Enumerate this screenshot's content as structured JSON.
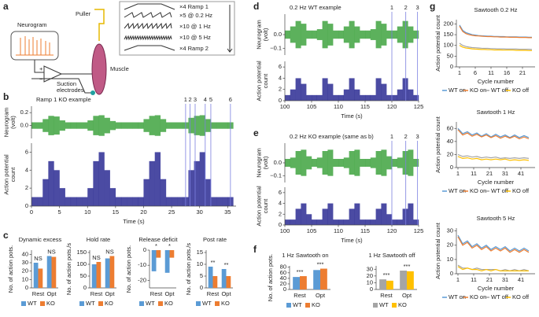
{
  "panel_labels": [
    "a",
    "b",
    "c",
    "d",
    "e",
    "f",
    "g"
  ],
  "diagram": {
    "neurogram": "Neurogram",
    "puller": "Puller",
    "muscle": "Muscle",
    "electrodes": [
      "Suction",
      "electrodes"
    ],
    "amp_signs": [
      "+",
      "−"
    ],
    "protocol": [
      "×4 Ramp 1",
      "×5 @ 0.2 Hz",
      "×10 @ 1 Hz",
      "×10 @ 5 Hz",
      "×4 Ramp 2"
    ]
  },
  "chart_data": [
    {
      "type": "trace",
      "title": "Ramp 1 KO example",
      "xlabel": "Time (s)",
      "xlim": [
        0,
        36.5
      ],
      "xticks": [
        0,
        5,
        10,
        15,
        20,
        25,
        30,
        35
      ],
      "x": [
        0,
        1,
        2,
        3,
        4,
        5,
        6,
        7,
        8,
        9,
        10,
        11,
        12,
        13,
        14,
        15,
        16,
        17,
        18,
        19,
        20,
        21,
        22,
        23,
        24,
        25,
        26,
        27,
        28,
        29,
        30,
        31,
        32,
        33,
        34,
        35
      ],
      "neurogram": {
        "ylabel": [
          "Neurogram",
          "(volt)"
        ],
        "ylim": [
          -0.2,
          0.3
        ],
        "yticks": [
          {
            "value": 0,
            "label": "0.0"
          },
          {
            "value": 0.2,
            "label": "0.2"
          }
        ],
        "amplitude": [
          0.05,
          0.05,
          0.1,
          0.15,
          0.14,
          0.08,
          0.05,
          0.05,
          0.05,
          0.05,
          0.08,
          0.15,
          0.16,
          0.12,
          0.07,
          0.05,
          0.05,
          0.05,
          0.05,
          0.05,
          0.1,
          0.15,
          0.16,
          0.1,
          0.05,
          0.05,
          0.05,
          0.05,
          0.12,
          0.15,
          0.16,
          0.1,
          0.05,
          0.05,
          0.05,
          0.05
        ]
      },
      "counts": {
        "ylabel": [
          "Action potential",
          "count"
        ],
        "ylim": [
          0,
          7
        ],
        "yticks": [
          0,
          2,
          4,
          6
        ],
        "values": [
          1,
          1,
          3,
          5,
          4,
          2,
          1,
          1,
          1,
          1,
          2,
          5,
          6,
          4,
          2,
          1,
          1,
          1,
          1,
          1,
          3,
          5,
          6,
          3,
          1,
          1,
          1,
          1,
          4,
          5,
          6,
          3,
          1,
          1,
          1,
          1
        ]
      },
      "markers": [
        27.5,
        28.3,
        29.2,
        31,
        32,
        35.5
      ],
      "marker_labels": [
        "1",
        "2",
        "3",
        "4",
        "5",
        "6"
      ]
    },
    {
      "type": "bar",
      "title": "Dynamic excess",
      "ylabel": "No. of action pots.",
      "categories": [
        "Rest",
        "Opt"
      ],
      "ylim": [
        0,
        45
      ],
      "yticks": [
        0,
        10,
        20,
        30,
        40
      ],
      "series": [
        {
          "name": "WT",
          "color": "#5b9bd5",
          "values": [
            30,
            38
          ]
        },
        {
          "name": "KO",
          "color": "#ed7d31",
          "values": [
            23,
            37
          ]
        }
      ],
      "significance": [
        "NS",
        "NS"
      ]
    },
    {
      "type": "bar",
      "title": "Hold rate",
      "ylabel": "No. of action pots./s",
      "categories": [
        "Rest",
        "Opt"
      ],
      "ylim": [
        0,
        160
      ],
      "yticks": [
        0,
        50,
        100,
        150
      ],
      "series": [
        {
          "name": "WT",
          "color": "#5b9bd5",
          "values": [
            100,
            125
          ]
        },
        {
          "name": "KO",
          "color": "#ed7d31",
          "values": [
            110,
            135
          ]
        }
      ],
      "significance": [
        "NS",
        "NS"
      ]
    },
    {
      "type": "bar",
      "title": "Release deficit",
      "ylabel": "No. of action pots.",
      "categories": [
        "Rest",
        "Opt"
      ],
      "ylim": [
        -25,
        0
      ],
      "yticks": [
        0,
        -10,
        -20
      ],
      "series": [
        {
          "name": "WT",
          "color": "#5b9bd5",
          "values": [
            -14,
            -15
          ]
        },
        {
          "name": "KO",
          "color": "#ed7d31",
          "values": [
            -5,
            -5
          ]
        }
      ],
      "significance": [
        "*",
        "*"
      ]
    },
    {
      "type": "bar",
      "title": "Post rate",
      "ylabel": "No. of action pots./s",
      "categories": [
        "Rest",
        "Opt"
      ],
      "ylim": [
        0,
        16
      ],
      "yticks": [
        0,
        5,
        10,
        15
      ],
      "series": [
        {
          "name": "WT",
          "color": "#5b9bd5",
          "values": [
            9,
            8
          ]
        },
        {
          "name": "KO",
          "color": "#ed7d31",
          "values": [
            5,
            5
          ]
        }
      ],
      "significance": [
        "**",
        "**"
      ]
    },
    {
      "type": "trace",
      "title": "0.2 Hz WT example",
      "xlabel": "Time (s)",
      "xlim": [
        100,
        125
      ],
      "xticks": [
        100,
        105,
        110,
        115,
        120,
        125
      ],
      "x": [
        100,
        101,
        102,
        103,
        104,
        105,
        106,
        107,
        108,
        109,
        110,
        111,
        112,
        113,
        114,
        115,
        116,
        117,
        118,
        119,
        120,
        121,
        122,
        123,
        124
      ],
      "neurogram": {
        "ylabel": [
          "Neurogram",
          "(volt)"
        ],
        "ylim": [
          -0.15,
          0.15
        ],
        "yticks": [
          {
            "value": 0,
            "label": "0.0"
          },
          {
            "value": -0.1,
            "label": "−0.1"
          }
        ],
        "amplitude": [
          0.03,
          0.06,
          0.1,
          0.08,
          0.03,
          0.03,
          0.04,
          0.1,
          0.08,
          0.03,
          0.03,
          0.06,
          0.1,
          0.06,
          0.03,
          0.03,
          0.04,
          0.1,
          0.08,
          0.03,
          0.03,
          0.06,
          0.1,
          0.06,
          0.03
        ]
      },
      "counts": {
        "ylabel": [
          "Action potential",
          "count"
        ],
        "ylim": [
          0,
          7
        ],
        "yticks": [
          0,
          2,
          4,
          6
        ],
        "values": [
          1,
          2,
          4,
          3,
          1,
          1,
          1,
          4,
          3,
          1,
          1,
          2,
          4,
          2,
          1,
          1,
          1,
          4,
          3,
          1,
          1,
          2,
          4,
          2,
          1
        ]
      },
      "markers": [
        120,
        122.6,
        124.8
      ],
      "marker_labels": [
        "1",
        "2",
        "3"
      ]
    },
    {
      "type": "trace",
      "title": "0.2 Hz KO example (same as b)",
      "xlabel": "Time (s)",
      "xlim": [
        100,
        125
      ],
      "xticks": [
        100,
        105,
        110,
        115,
        120,
        125
      ],
      "x": [
        100,
        101,
        102,
        103,
        104,
        105,
        106,
        107,
        108,
        109,
        110,
        111,
        112,
        113,
        114,
        115,
        116,
        117,
        118,
        119,
        120,
        121,
        122,
        123,
        124
      ],
      "neurogram": {
        "ylabel": [
          "Neurogram",
          "(volt)"
        ],
        "ylim": [
          -0.15,
          0.15
        ],
        "yticks": [
          {
            "value": 0,
            "label": "0.0"
          },
          {
            "value": -0.1,
            "label": "−0.1"
          }
        ],
        "amplitude": [
          0.03,
          0.04,
          0.09,
          0.1,
          0.05,
          0.03,
          0.04,
          0.09,
          0.1,
          0.03,
          0.03,
          0.04,
          0.09,
          0.1,
          0.03,
          0.03,
          0.04,
          0.09,
          0.1,
          0.05,
          0.03,
          0.04,
          0.09,
          0.1,
          0.03
        ]
      },
      "counts": {
        "ylabel": [
          "Action potential",
          "count"
        ],
        "ylim": [
          0,
          7
        ],
        "yticks": [
          0,
          2,
          4,
          6
        ],
        "values": [
          1,
          1,
          3,
          4,
          2,
          1,
          1,
          3,
          4,
          1,
          1,
          1,
          3,
          4,
          1,
          1,
          1,
          3,
          4,
          2,
          1,
          1,
          3,
          4,
          1
        ]
      },
      "markers": [
        120,
        122.6,
        124.8
      ],
      "marker_labels": [
        "1",
        "2",
        "3"
      ]
    },
    {
      "type": "bar",
      "title": "1 Hz Sawtooth on",
      "ylabel": "No. of action pots.",
      "categories": [
        "Rest",
        "Opt"
      ],
      "ylim": [
        0,
        85
      ],
      "yticks": [
        0,
        20,
        40,
        60,
        80
      ],
      "series": [
        {
          "name": "WT",
          "color": "#5b9bd5",
          "values": [
            45,
            70
          ]
        },
        {
          "name": "KO",
          "color": "#ed7d31",
          "values": [
            48,
            75
          ]
        }
      ],
      "significance": [
        "***",
        "***"
      ]
    },
    {
      "type": "bar",
      "title": "1 Hz Sawtooth off",
      "categories": [
        "Rest",
        "Opt"
      ],
      "ylim": [
        0,
        35
      ],
      "yticks": [
        0,
        10,
        20,
        30
      ],
      "series": [
        {
          "name": "WT",
          "color": "#a5a5a5",
          "values": [
            15,
            28
          ]
        },
        {
          "name": "KO",
          "color": "#ffc000",
          "values": [
            13,
            27
          ]
        }
      ],
      "significance": [
        "***",
        "***"
      ]
    },
    {
      "type": "line",
      "title": "Sawtooth 0.2 Hz",
      "xlabel": "Cycle number",
      "ylabel": "Action potential count",
      "xlim": [
        0,
        25
      ],
      "xticks": [
        1,
        6,
        11,
        16,
        21
      ],
      "ylim": [
        0,
        220
      ],
      "yticks": [
        0,
        50,
        100,
        150,
        200
      ],
      "x": [
        1,
        2,
        3,
        4,
        5,
        6,
        7,
        8,
        9,
        10,
        11,
        12,
        13,
        14,
        15,
        16,
        17,
        18,
        19,
        20,
        21,
        22,
        23,
        24
      ],
      "series": [
        {
          "name": "WT on",
          "color": "#5b9bd5",
          "values": [
            195,
            170,
            160,
            155,
            150,
            148,
            146,
            145,
            144,
            143,
            143,
            142,
            142,
            141,
            141,
            140,
            140,
            140,
            140,
            139,
            139,
            139,
            138,
            138
          ]
        },
        {
          "name": "KO on",
          "color": "#ed7d31",
          "values": [
            190,
            165,
            155,
            150,
            147,
            145,
            144,
            143,
            142,
            141,
            141,
            140,
            140,
            139,
            139,
            139,
            138,
            138,
            138,
            137,
            137,
            137,
            136,
            136
          ]
        },
        {
          "name": "WT off",
          "color": "#a5a5a5",
          "values": [
            110,
            100,
            95,
            92,
            90,
            89,
            88,
            87,
            86,
            86,
            85,
            85,
            84,
            84,
            84,
            83,
            83,
            83,
            83,
            82,
            82,
            82,
            82,
            81
          ]
        },
        {
          "name": "KO off",
          "color": "#ffc000",
          "values": [
            100,
            92,
            88,
            86,
            84,
            83,
            82,
            81,
            81,
            80,
            80,
            79,
            79,
            79,
            78,
            78,
            78,
            78,
            77,
            77,
            77,
            77,
            76,
            76
          ]
        }
      ]
    },
    {
      "type": "line",
      "title": "Sawtooth 1 Hz",
      "xlabel": "Cycle number",
      "ylabel": "Action potential count",
      "xlim": [
        0,
        50
      ],
      "xticks": [
        1,
        11,
        21,
        31,
        41
      ],
      "ylim": [
        0,
        70
      ],
      "yticks": [
        0,
        20,
        40,
        60
      ],
      "x": [
        1,
        4,
        7,
        10,
        13,
        16,
        19,
        22,
        25,
        28,
        31,
        34,
        37,
        40,
        43,
        46
      ],
      "series": [
        {
          "name": "WT on",
          "color": "#5b9bd5",
          "values": [
            60,
            52,
            55,
            50,
            53,
            48,
            52,
            47,
            51,
            47,
            50,
            46,
            50,
            46,
            49,
            46
          ]
        },
        {
          "name": "KO on",
          "color": "#ed7d31",
          "values": [
            58,
            50,
            53,
            48,
            51,
            47,
            50,
            46,
            49,
            45,
            48,
            45,
            48,
            44,
            47,
            44
          ]
        },
        {
          "name": "WT off",
          "color": "#a5a5a5",
          "values": [
            20,
            17,
            18,
            16,
            17,
            15,
            16,
            15,
            16,
            14,
            15,
            14,
            15,
            14,
            15,
            14
          ]
        },
        {
          "name": "KO off",
          "color": "#ffc000",
          "values": [
            17,
            14,
            15,
            13,
            14,
            12,
            13,
            12,
            13,
            12,
            13,
            11,
            12,
            11,
            12,
            11
          ]
        }
      ]
    },
    {
      "type": "line",
      "title": "Sawtooth 5 Hz",
      "xlabel": "Cycle number",
      "ylabel": "Action potential count",
      "xlim": [
        0,
        50
      ],
      "xticks": [
        1,
        11,
        21,
        31,
        41
      ],
      "ylim": [
        0,
        32
      ],
      "yticks": [
        0,
        10,
        20,
        30
      ],
      "x": [
        1,
        4,
        7,
        10,
        13,
        16,
        19,
        22,
        25,
        28,
        31,
        34,
        37,
        40,
        43,
        46
      ],
      "series": [
        {
          "name": "WT on",
          "color": "#5b9bd5",
          "values": [
            27,
            21,
            23,
            19,
            21,
            18,
            20,
            17,
            19,
            17,
            19,
            16,
            18,
            16,
            18,
            16
          ]
        },
        {
          "name": "KO on",
          "color": "#ed7d31",
          "values": [
            26,
            20,
            22,
            18,
            20,
            17,
            19,
            16,
            18,
            16,
            18,
            15,
            17,
            15,
            17,
            15
          ]
        },
        {
          "name": "WT off",
          "color": "#a5a5a5",
          "values": [
            6,
            4,
            4,
            3,
            4,
            3,
            3,
            3,
            3,
            2,
            3,
            2,
            3,
            2,
            3,
            2
          ]
        },
        {
          "name": "KO off",
          "color": "#ffc000",
          "values": [
            5,
            3,
            4,
            3,
            3,
            2,
            3,
            2,
            3,
            2,
            2,
            2,
            2,
            2,
            2,
            2
          ]
        }
      ]
    }
  ]
}
